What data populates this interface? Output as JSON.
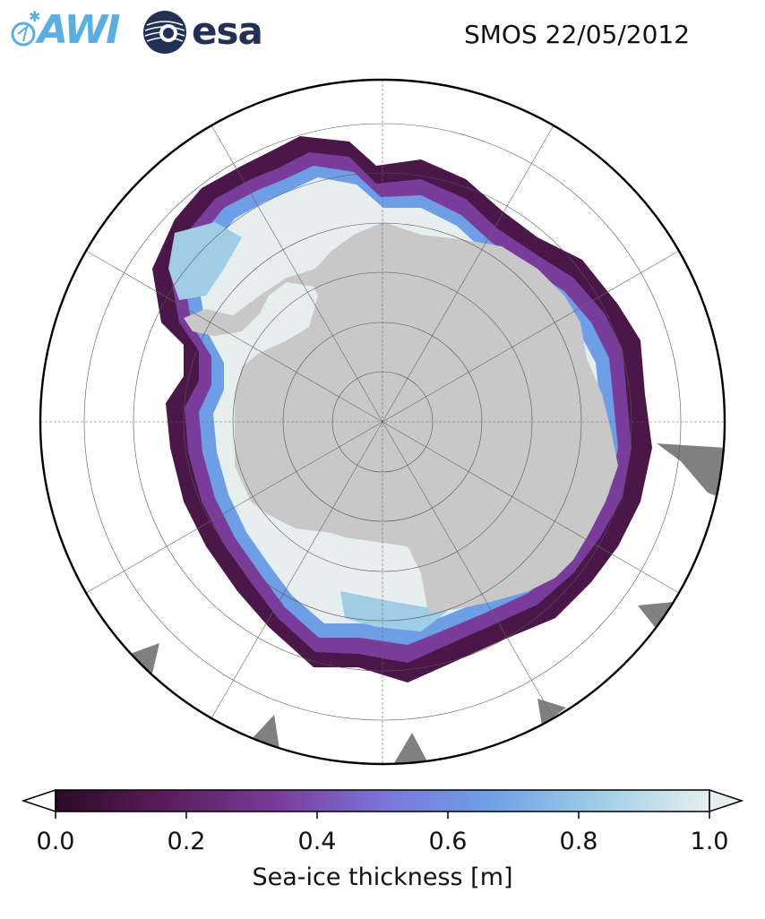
{
  "header": {
    "logo_awi": "AWI",
    "logo_esa": "esa",
    "title": "SMOS 22/05/2012"
  },
  "map": {
    "projection": "south-polar-stereographic",
    "ocean_color": "#ffffff",
    "land_color": "#c8c8c8",
    "nodata_color": "#808080",
    "grid": true
  },
  "colorbar": {
    "label": "Sea-ice thickness [m]",
    "min": 0.0,
    "max": 1.0,
    "extend": "both",
    "ticks": [
      "0.0",
      "0.2",
      "0.4",
      "0.6",
      "0.8",
      "1.0"
    ],
    "colormap": [
      "#2a0c25",
      "#5b1d5c",
      "#7a3c9a",
      "#7b74d8",
      "#6e9ee6",
      "#9fcde6",
      "#e6efee"
    ]
  }
}
